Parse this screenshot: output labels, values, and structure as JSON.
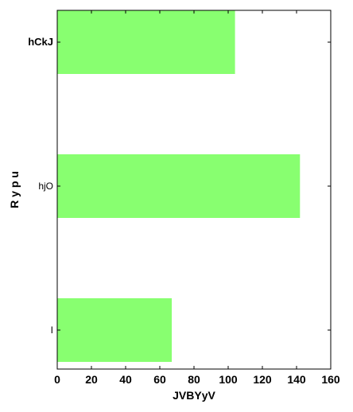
{
  "chart_data": {
    "type": "bar",
    "orientation": "horizontal",
    "categories": [
      "hCkJ",
      "hjO",
      "I"
    ],
    "values": [
      104,
      142,
      67
    ],
    "xlabel": "JVBYyV",
    "ylabel": "R y p u",
    "xlim": [
      0,
      160
    ],
    "xticks": [
      0,
      20,
      40,
      60,
      80,
      100,
      120,
      140,
      160
    ],
    "bar_color": "#88ff70",
    "grid": false,
    "legend": "none"
  }
}
